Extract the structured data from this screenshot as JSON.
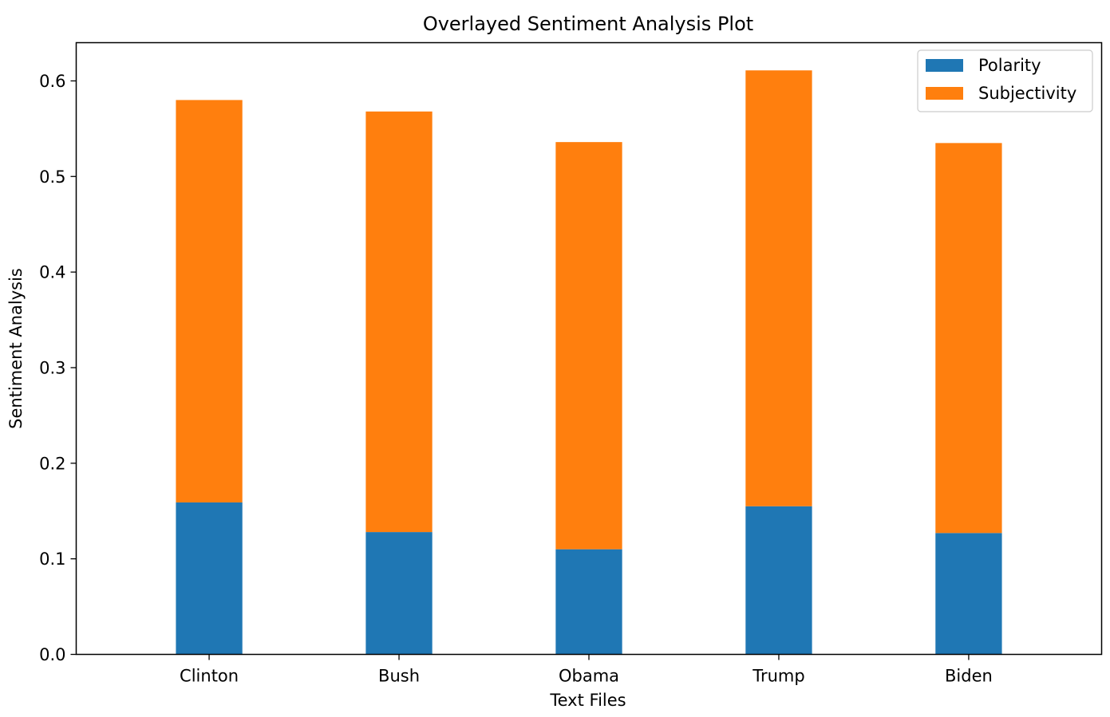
{
  "chart_data": {
    "type": "bar",
    "stacked": true,
    "title": "Overlayed Sentiment Analysis Plot",
    "xlabel": "Text Files",
    "ylabel": "Sentiment Analysis",
    "categories": [
      "Clinton",
      "Bush",
      "Obama",
      "Trump",
      "Biden"
    ],
    "series": [
      {
        "name": "Polarity",
        "values": [
          0.159,
          0.128,
          0.11,
          0.155,
          0.127
        ],
        "color": "#1f77b4"
      },
      {
        "name": "Subjectivity",
        "values": [
          0.421,
          0.44,
          0.426,
          0.456,
          0.408
        ],
        "color": "#ff7f0e"
      }
    ],
    "ylim": [
      0,
      0.64
    ],
    "yticks": [
      "0.0",
      "0.1",
      "0.2",
      "0.3",
      "0.4",
      "0.5",
      "0.6"
    ],
    "grid": false,
    "legend_position": "top-right"
  }
}
